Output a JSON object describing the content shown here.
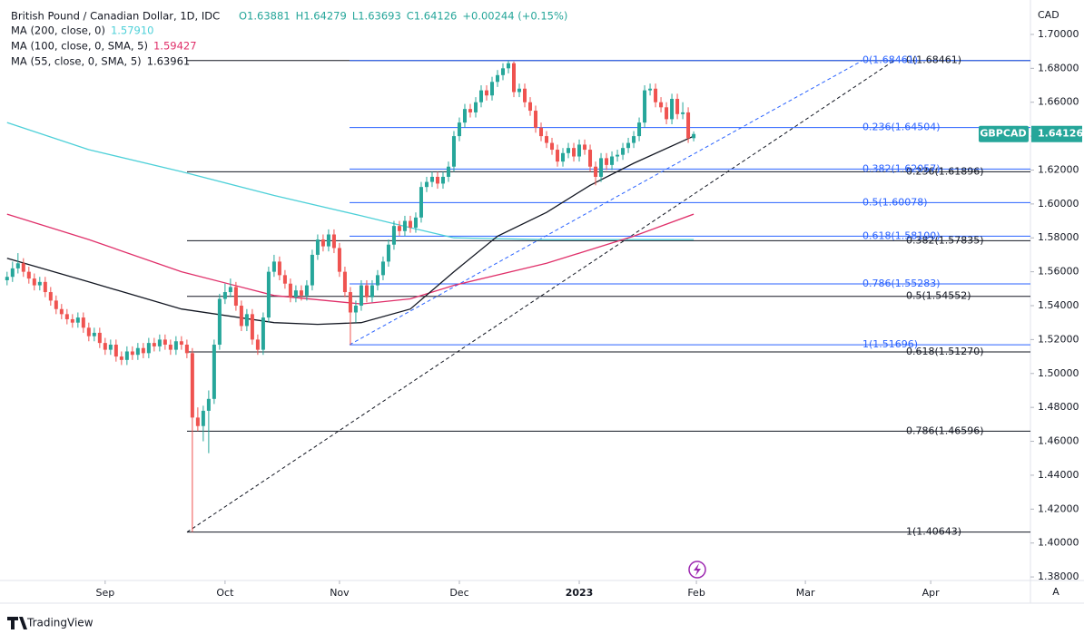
{
  "chart_data": {
    "type": "candlestick",
    "title": "British Pound / Canadian Dollar, 1D, IDC",
    "header_values": [
      "O1.63881",
      "H1.64279",
      "L1.63693",
      "C1.64126"
    ],
    "change": "+0.00244 (+0.15%)",
    "currency": "CAD",
    "up_color": "#26a69a",
    "down_color": "#ef5350",
    "grid": false,
    "ylim": [
      1.3779,
      1.7203
    ],
    "yticks": [
      {
        "value": 1.38,
        "label": "1.38000"
      },
      {
        "value": 1.4,
        "label": "1.40000"
      },
      {
        "value": 1.42,
        "label": "1.42000"
      },
      {
        "value": 1.44,
        "label": "1.44000"
      },
      {
        "value": 1.46,
        "label": "1.46000"
      },
      {
        "value": 1.48,
        "label": "1.48000"
      },
      {
        "value": 1.5,
        "label": "1.50000"
      },
      {
        "value": 1.52,
        "label": "1.52000"
      },
      {
        "value": 1.54,
        "label": "1.54000"
      },
      {
        "value": 1.56,
        "label": "1.56000"
      },
      {
        "value": 1.58,
        "label": "1.58000"
      },
      {
        "value": 1.6,
        "label": "1.60000"
      },
      {
        "value": 1.62,
        "label": "1.62000"
      },
      {
        "value": 1.64,
        "label": "1.64000"
      },
      {
        "value": 1.66,
        "label": "1.66000"
      },
      {
        "value": 1.68,
        "label": "1.68000"
      },
      {
        "value": 1.7,
        "label": "1.70000"
      }
    ],
    "xlim": [
      -1.3,
      187.8
    ],
    "xticks": [
      {
        "value": 18,
        "label": "Sep"
      },
      {
        "value": 40,
        "label": "Oct"
      },
      {
        "value": 61,
        "label": "Nov"
      },
      {
        "value": 83,
        "label": "Dec"
      },
      {
        "value": 105,
        "label": "2023"
      },
      {
        "value": 126.5,
        "label": "Feb"
      },
      {
        "value": 146.5,
        "label": "Mar"
      },
      {
        "value": 169.5,
        "label": "Apr"
      }
    ],
    "ohlc": [
      [
        1.555,
        1.56,
        1.552,
        1.557
      ],
      [
        1.557,
        1.566,
        1.554,
        1.562
      ],
      [
        1.562,
        1.571,
        1.559,
        1.565
      ],
      [
        1.565,
        1.568,
        1.557,
        1.56
      ],
      [
        1.56,
        1.563,
        1.553,
        1.556
      ],
      [
        1.556,
        1.559,
        1.549,
        1.552
      ],
      [
        1.552,
        1.557,
        1.549,
        1.554
      ],
      [
        1.554,
        1.557,
        1.545,
        1.548
      ],
      [
        1.548,
        1.551,
        1.54,
        1.543
      ],
      [
        1.543,
        1.546,
        1.535,
        1.538
      ],
      [
        1.538,
        1.541,
        1.532,
        1.535
      ],
      [
        1.535,
        1.538,
        1.529,
        1.532
      ],
      [
        1.532,
        1.535,
        1.527,
        1.53
      ],
      [
        1.53,
        1.536,
        1.527,
        1.533
      ],
      [
        1.533,
        1.536,
        1.524,
        1.527
      ],
      [
        1.527,
        1.53,
        1.519,
        1.522
      ],
      [
        1.522,
        1.527,
        1.519,
        1.524
      ],
      [
        1.524,
        1.527,
        1.515,
        1.518
      ],
      [
        1.518,
        1.521,
        1.511,
        1.514
      ],
      [
        1.514,
        1.52,
        1.511,
        1.517
      ],
      [
        1.517,
        1.52,
        1.507,
        1.51
      ],
      [
        1.51,
        1.513,
        1.505,
        1.508
      ],
      [
        1.508,
        1.516,
        1.505,
        1.513
      ],
      [
        1.513,
        1.516,
        1.508,
        1.511
      ],
      [
        1.511,
        1.518,
        1.508,
        1.515
      ],
      [
        1.515,
        1.518,
        1.509,
        1.512
      ],
      [
        1.512,
        1.521,
        1.509,
        1.518
      ],
      [
        1.518,
        1.521,
        1.513,
        1.516
      ],
      [
        1.516,
        1.523,
        1.513,
        1.52
      ],
      [
        1.52,
        1.523,
        1.514,
        1.517
      ],
      [
        1.517,
        1.52,
        1.511,
        1.514
      ],
      [
        1.514,
        1.522,
        1.511,
        1.519
      ],
      [
        1.519,
        1.522,
        1.514,
        1.517
      ],
      [
        1.517,
        1.52,
        1.509,
        1.512
      ],
      [
        1.512,
        1.515,
        1.40643,
        1.474
      ],
      [
        1.474,
        1.48,
        1.466,
        1.469
      ],
      [
        1.469,
        1.481,
        1.46,
        1.478
      ],
      [
        1.478,
        1.49,
        1.453,
        1.485
      ],
      [
        1.485,
        1.52,
        1.482,
        1.517
      ],
      [
        1.517,
        1.547,
        1.514,
        1.544
      ],
      [
        1.544,
        1.553,
        1.541,
        1.548
      ],
      [
        1.548,
        1.556,
        1.545,
        1.551
      ],
      [
        1.551,
        1.554,
        1.537,
        1.54
      ],
      [
        1.54,
        1.543,
        1.525,
        1.528
      ],
      [
        1.528,
        1.538,
        1.525,
        1.535
      ],
      [
        1.535,
        1.538,
        1.517,
        1.52
      ],
      [
        1.52,
        1.523,
        1.511,
        1.514
      ],
      [
        1.514,
        1.536,
        1.511,
        1.533
      ],
      [
        1.533,
        1.563,
        1.53,
        1.56
      ],
      [
        1.56,
        1.57,
        1.557,
        1.566
      ],
      [
        1.566,
        1.569,
        1.555,
        1.558
      ],
      [
        1.558,
        1.561,
        1.55,
        1.553
      ],
      [
        1.553,
        1.556,
        1.542,
        1.545
      ],
      [
        1.545,
        1.552,
        1.542,
        1.549
      ],
      [
        1.549,
        1.552,
        1.543,
        1.546
      ],
      [
        1.546,
        1.555,
        1.543,
        1.552
      ],
      [
        1.552,
        1.573,
        1.549,
        1.57
      ],
      [
        1.57,
        1.582,
        1.567,
        1.579
      ],
      [
        1.579,
        1.582,
        1.572,
        1.575
      ],
      [
        1.575,
        1.585,
        1.572,
        1.582
      ],
      [
        1.582,
        1.585,
        1.571,
        1.574
      ],
      [
        1.574,
        1.577,
        1.557,
        1.56
      ],
      [
        1.56,
        1.563,
        1.545,
        1.548
      ],
      [
        1.548,
        1.551,
        1.51696,
        1.536
      ],
      [
        1.536,
        1.543,
        1.53,
        1.54
      ],
      [
        1.54,
        1.555,
        1.537,
        1.552
      ],
      [
        1.552,
        1.555,
        1.542,
        1.545
      ],
      [
        1.545,
        1.555,
        1.542,
        1.552
      ],
      [
        1.552,
        1.561,
        1.549,
        1.558
      ],
      [
        1.558,
        1.569,
        1.555,
        1.566
      ],
      [
        1.566,
        1.579,
        1.563,
        1.576
      ],
      [
        1.576,
        1.59,
        1.573,
        1.587
      ],
      [
        1.587,
        1.59,
        1.581,
        1.584
      ],
      [
        1.584,
        1.593,
        1.581,
        1.59
      ],
      [
        1.59,
        1.593,
        1.583,
        1.586
      ],
      [
        1.586,
        1.595,
        1.583,
        1.592
      ],
      [
        1.592,
        1.613,
        1.589,
        1.61
      ],
      [
        1.61,
        1.616,
        1.607,
        1.613
      ],
      [
        1.613,
        1.619,
        1.61,
        1.616
      ],
      [
        1.616,
        1.619,
        1.609,
        1.612
      ],
      [
        1.612,
        1.619,
        1.609,
        1.616
      ],
      [
        1.616,
        1.625,
        1.613,
        1.622
      ],
      [
        1.622,
        1.643,
        1.619,
        1.64
      ],
      [
        1.64,
        1.651,
        1.637,
        1.648
      ],
      [
        1.648,
        1.659,
        1.645,
        1.656
      ],
      [
        1.656,
        1.659,
        1.651,
        1.654
      ],
      [
        1.654,
        1.663,
        1.651,
        1.66
      ],
      [
        1.66,
        1.67,
        1.657,
        1.667
      ],
      [
        1.667,
        1.67,
        1.661,
        1.664
      ],
      [
        1.664,
        1.675,
        1.661,
        1.672
      ],
      [
        1.672,
        1.679,
        1.669,
        1.676
      ],
      [
        1.676,
        1.683,
        1.673,
        1.68
      ],
      [
        1.68,
        1.68461,
        1.677,
        1.683
      ],
      [
        1.683,
        1.684,
        1.663,
        1.666
      ],
      [
        1.666,
        1.671,
        1.663,
        1.668
      ],
      [
        1.668,
        1.671,
        1.657,
        1.66
      ],
      [
        1.66,
        1.663,
        1.652,
        1.655
      ],
      [
        1.655,
        1.658,
        1.642,
        1.645
      ],
      [
        1.645,
        1.648,
        1.637,
        1.64
      ],
      [
        1.64,
        1.643,
        1.633,
        1.636
      ],
      [
        1.636,
        1.639,
        1.629,
        1.632
      ],
      [
        1.632,
        1.635,
        1.622,
        1.625
      ],
      [
        1.625,
        1.633,
        1.622,
        1.63
      ],
      [
        1.63,
        1.636,
        1.627,
        1.633
      ],
      [
        1.633,
        1.636,
        1.625,
        1.628
      ],
      [
        1.628,
        1.638,
        1.625,
        1.635
      ],
      [
        1.635,
        1.638,
        1.629,
        1.632
      ],
      [
        1.632,
        1.635,
        1.619,
        1.622
      ],
      [
        1.622,
        1.625,
        1.611,
        1.616
      ],
      [
        1.616,
        1.63,
        1.613,
        1.627
      ],
      [
        1.627,
        1.63,
        1.62,
        1.623
      ],
      [
        1.623,
        1.631,
        1.62,
        1.628
      ],
      [
        1.628,
        1.632,
        1.625,
        1.629
      ],
      [
        1.629,
        1.636,
        1.626,
        1.633
      ],
      [
        1.633,
        1.639,
        1.63,
        1.636
      ],
      [
        1.636,
        1.643,
        1.633,
        1.64
      ],
      [
        1.64,
        1.651,
        1.637,
        1.648
      ],
      [
        1.648,
        1.67,
        1.645,
        1.667
      ],
      [
        1.667,
        1.671,
        1.664,
        1.668
      ],
      [
        1.668,
        1.671,
        1.657,
        1.66
      ],
      [
        1.66,
        1.663,
        1.654,
        1.657
      ],
      [
        1.657,
        1.66,
        1.647,
        1.65
      ],
      [
        1.65,
        1.665,
        1.647,
        1.662
      ],
      [
        1.662,
        1.665,
        1.65,
        1.653
      ],
      [
        1.653,
        1.66,
        1.65,
        1.654
      ],
      [
        1.654,
        1.657,
        1.636,
        1.63881
      ],
      [
        1.63881,
        1.64279,
        1.63693,
        1.64126
      ]
    ],
    "series": [
      {
        "name": "MA (200, close, 0)",
        "value": {
          "value": 1.5791,
          "label": "1.57910"
        },
        "color": "#4dd0d8",
        "x": [
          0,
          15,
          32,
          49,
          65,
          74,
          82,
          99,
          126
        ],
        "values": [
          1.648,
          1.632,
          1.619,
          1.605,
          1.593,
          1.586,
          1.58,
          1.579,
          1.579
        ]
      },
      {
        "name": "MA (100, close, 0, SMA, 5)",
        "value": {
          "value": 1.59427,
          "label": "1.59427"
        },
        "color": "#e0306a",
        "x": [
          0,
          15,
          32,
          49,
          65,
          74,
          82,
          99,
          115,
          126
        ],
        "values": [
          1.594,
          1.579,
          1.56,
          1.546,
          1.541,
          1.544,
          1.552,
          1.565,
          1.581,
          1.594
        ]
      },
      {
        "name": "MA (55, close, 0, SMA, 5)",
        "value": {
          "value": 1.63961,
          "label": "1.63961"
        },
        "color": "#131722",
        "x": [
          0,
          15,
          32,
          49,
          57,
          65,
          74,
          82,
          90,
          99,
          107,
          115,
          126
        ],
        "values": [
          1.568,
          1.554,
          1.538,
          1.53,
          1.529,
          1.53,
          1.538,
          1.56,
          1.581,
          1.595,
          1.611,
          1.624,
          1.64
        ]
      }
    ],
    "fib_sets": [
      {
        "color": "#131722",
        "levels": [
          {
            "value": 1.40643,
            "label": "1(1.40643)"
          },
          {
            "value": 1.46596,
            "label": "0.786(1.46596)"
          },
          {
            "value": 1.5127,
            "label": "0.618(1.51270)"
          },
          {
            "value": 1.54552,
            "label": "0.5(1.54552)"
          },
          {
            "value": 1.57835,
            "label": "0.382(1.57835)"
          },
          {
            "value": 1.61896,
            "label": "0.236(1.61896)"
          },
          {
            "value": 1.68461,
            "label": "0(1.68461)"
          }
        ]
      },
      {
        "color": "#2962ff",
        "levels": [
          {
            "value": 1.51696,
            "label": "1(1.51696)"
          },
          {
            "value": 1.55283,
            "label": "0.786(1.55283)"
          },
          {
            "value": 1.581,
            "label": "0.618(1.58100)"
          },
          {
            "value": 1.60078,
            "label": "0.5(1.60078)"
          },
          {
            "value": 1.62057,
            "label": "0.382(1.62057)"
          },
          {
            "value": 1.64504,
            "label": "0.236(1.64504)"
          },
          {
            "value": 1.68461,
            "label": "0(1.68461)"
          }
        ]
      }
    ],
    "last_price": {
      "symbol": "GBPCAD",
      "value": 1.64126,
      "label": "1.64126"
    },
    "axis_button": "A",
    "brand": "TradingView"
  }
}
